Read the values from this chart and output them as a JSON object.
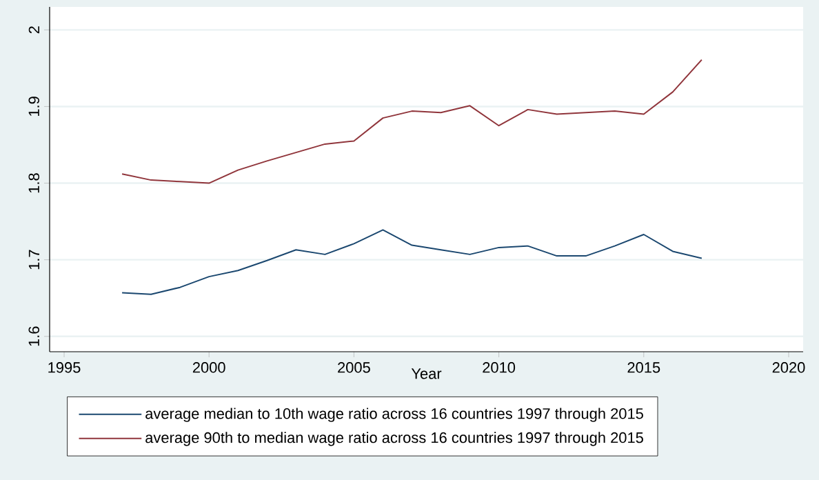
{
  "chart_data": {
    "type": "line",
    "xlabel": "Year",
    "x": [
      1997,
      1998,
      1999,
      2000,
      2001,
      2002,
      2003,
      2004,
      2005,
      2006,
      2007,
      2008,
      2009,
      2010,
      2011,
      2012,
      2013,
      2014,
      2015,
      2016,
      2017
    ],
    "series": [
      {
        "name": "average median to 10th wage ratio across 16 countries 1997 through 2015",
        "color": "#1a476f",
        "values": [
          1.657,
          1.655,
          1.664,
          1.678,
          1.686,
          1.699,
          1.713,
          1.707,
          1.721,
          1.739,
          1.719,
          1.713,
          1.707,
          1.716,
          1.718,
          1.705,
          1.705,
          1.718,
          1.733,
          1.711,
          1.702
        ]
      },
      {
        "name": "average 90th to median wage ratio across 16 countries 1997 through 2015",
        "color": "#90353b",
        "values": [
          1.812,
          1.804,
          1.802,
          1.8,
          1.817,
          1.829,
          1.84,
          1.851,
          1.855,
          1.885,
          1.894,
          1.892,
          1.901,
          1.875,
          1.896,
          1.89,
          1.892,
          1.894,
          1.89,
          1.919,
          1.961
        ]
      }
    ],
    "xlim": [
      1994.5,
      2020.5
    ],
    "xticks": [
      1995,
      2000,
      2005,
      2010,
      2015,
      2020
    ],
    "ylim": [
      1.58,
      2.03
    ],
    "yticks": [
      1.6,
      1.7,
      1.8,
      1.9,
      {
        "value": 2.0,
        "label": "2"
      }
    ],
    "grid": "y",
    "legend": "bottom",
    "line_style": "solid"
  }
}
